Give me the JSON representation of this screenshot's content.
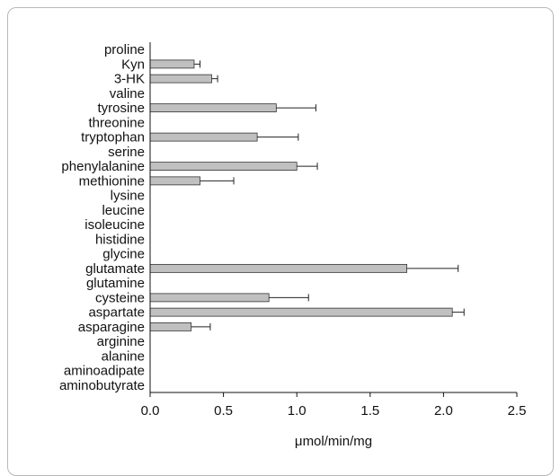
{
  "chart_data": {
    "type": "bar",
    "orientation": "horizontal",
    "categories": [
      "proline",
      "Kyn",
      "3-HK",
      "valine",
      "tyrosine",
      "threonine",
      "tryptophan",
      "serine",
      "phenylalanine",
      "methionine",
      "lysine",
      "leucine",
      "isoleucine",
      "histidine",
      "glycine",
      "glutamate",
      "glutamine",
      "cysteine",
      "aspartate",
      "asparagine",
      "arginine",
      "alanine",
      "aminoadipate",
      "aminobutyrate"
    ],
    "values": [
      0,
      0.3,
      0.42,
      0,
      0.86,
      0,
      0.73,
      0,
      1.0,
      0.34,
      0,
      0,
      0,
      0,
      0,
      1.75,
      0,
      0.81,
      2.06,
      0.28,
      0,
      0,
      0,
      0
    ],
    "errors": [
      0,
      0.04,
      0.04,
      0,
      0.27,
      0,
      0.28,
      0,
      0.14,
      0.23,
      0,
      0,
      0,
      0,
      0,
      0.35,
      0,
      0.27,
      0.08,
      0.13,
      0,
      0,
      0,
      0
    ],
    "xlabel": "μmol/min/mg",
    "xlim": [
      0,
      2.5
    ],
    "xticks": [
      "0.0",
      "0.5",
      "1.0",
      "1.5",
      "2.0",
      "2.5"
    ],
    "bar_color": "#c0c0c0",
    "bar_edge_color": "#333333",
    "grid": false
  }
}
